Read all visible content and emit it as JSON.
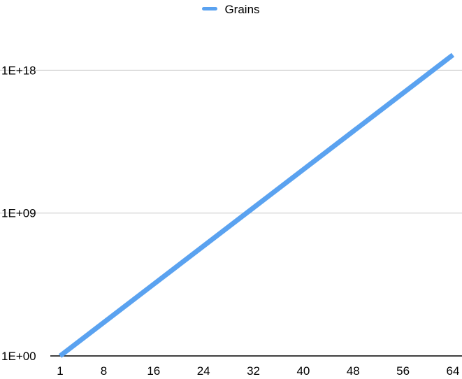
{
  "chart_data": {
    "type": "line",
    "title": "",
    "xlabel": "",
    "ylabel": "",
    "y_scale": "log",
    "grid": true,
    "legend_position": "top-center",
    "x_ticks": [
      "1",
      "8",
      "16",
      "24",
      "32",
      "40",
      "48",
      "56",
      "64"
    ],
    "y_ticks": [
      {
        "value": 1,
        "label": "1E+00"
      },
      {
        "value": 1000000000.0,
        "label": "1E+09"
      },
      {
        "value": 1e+18,
        "label": "1E+18"
      }
    ],
    "x_range": [
      1,
      64
    ],
    "series": [
      {
        "name": "Grains",
        "color": "#5aa2f0",
        "x": [
          1,
          8,
          16,
          24,
          32,
          40,
          48,
          56,
          64
        ],
        "y": [
          1,
          128,
          32768,
          8388608,
          2147483648,
          549755813888,
          140737488355328,
          36028797018963968,
          9223372036854775808
        ]
      }
    ]
  },
  "legend": {
    "label": "Grains",
    "color": "#5aa2f0"
  }
}
